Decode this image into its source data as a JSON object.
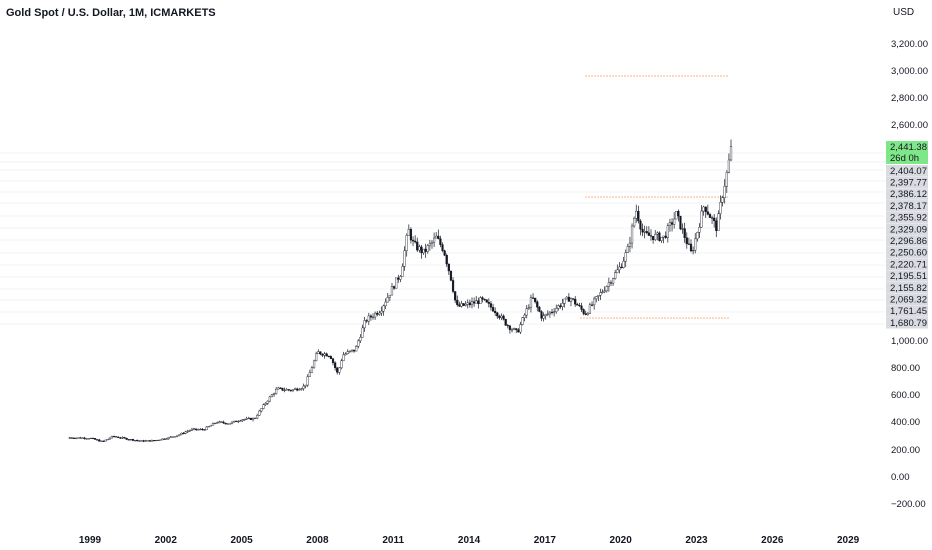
{
  "header": {
    "title": "Gold Spot / U.S. Dollar, 1M, ICMARKETS",
    "currency": "USD"
  },
  "chart_data": {
    "type": "candlestick",
    "interval": "1M",
    "y_axis_ticks": [
      "3,200.00",
      "3,000.00",
      "2,800.00",
      "2,600.00",
      "1,000.00",
      "800.00",
      "600.00",
      "400.00",
      "200.00",
      "0.00",
      "−200.00"
    ],
    "y_tick_values": [
      3200,
      3000,
      2800,
      2600,
      1000,
      800,
      600,
      400,
      200,
      0,
      -200
    ],
    "x_axis_labels": [
      "1999",
      "2002",
      "2005",
      "2008",
      "2011",
      "2014",
      "2017",
      "2020",
      "2023",
      "2026",
      "2029"
    ],
    "x_tick_years": [
      1999,
      2002,
      2005,
      2008,
      2011,
      2014,
      2017,
      2020,
      2023,
      2026,
      2029
    ],
    "current_price": {
      "label": "2,441.38",
      "countdown": "26d 0h",
      "color": "#7ee787"
    },
    "price_labels": [
      "2,404.07",
      "2,397.77",
      "2,386.12",
      "2,378.17",
      "2,355.92",
      "2,329.09",
      "2,296.86",
      "2,250.60",
      "2,220.71",
      "2,195.51",
      "2,155.82",
      "2,069.32",
      "1,761.45",
      "1,680.79"
    ],
    "horizontal_levels": [
      {
        "price": 2960,
        "from_year": 2018.6,
        "to_year": 2024.3,
        "color": "#f57c2c",
        "style": "dotted"
      },
      {
        "price": 2075,
        "from_year": 2018.6,
        "to_year": 2024.3,
        "color": "#f57c2c",
        "style": "dotted"
      },
      {
        "price": 1170,
        "from_year": 2018.4,
        "to_year": 2024.3,
        "color": "#f57c2c",
        "style": "dotted"
      }
    ],
    "price_path": [
      [
        1998.2,
        290
      ],
      [
        1999.0,
        287
      ],
      [
        1999.5,
        260
      ],
      [
        1999.9,
        300
      ],
      [
        2000.5,
        280
      ],
      [
        2001.0,
        265
      ],
      [
        2001.5,
        268
      ],
      [
        2002.0,
        285
      ],
      [
        2002.5,
        310
      ],
      [
        2003.0,
        350
      ],
      [
        2003.5,
        350
      ],
      [
        2004.0,
        405
      ],
      [
        2004.5,
        395
      ],
      [
        2005.0,
        425
      ],
      [
        2005.5,
        430
      ],
      [
        2006.0,
        560
      ],
      [
        2006.4,
        650
      ],
      [
        2007.0,
        640
      ],
      [
        2007.5,
        670
      ],
      [
        2008.0,
        920
      ],
      [
        2008.5,
        900
      ],
      [
        2008.8,
        760
      ],
      [
        2009.0,
        900
      ],
      [
        2009.5,
        940
      ],
      [
        2009.9,
        1150
      ],
      [
        2010.5,
        1230
      ],
      [
        2011.0,
        1400
      ],
      [
        2011.3,
        1500
      ],
      [
        2011.6,
        1820
      ],
      [
        2011.8,
        1710
      ],
      [
        2012.2,
        1650
      ],
      [
        2012.7,
        1760
      ],
      [
        2013.0,
        1670
      ],
      [
        2013.3,
        1450
      ],
      [
        2013.5,
        1250
      ],
      [
        2014.0,
        1270
      ],
      [
        2014.5,
        1300
      ],
      [
        2015.0,
        1230
      ],
      [
        2015.5,
        1120
      ],
      [
        2015.9,
        1060
      ],
      [
        2016.5,
        1320
      ],
      [
        2016.9,
        1170
      ],
      [
        2017.5,
        1250
      ],
      [
        2018.0,
        1320
      ],
      [
        2018.6,
        1200
      ],
      [
        2019.0,
        1300
      ],
      [
        2019.5,
        1420
      ],
      [
        2020.0,
        1550
      ],
      [
        2020.3,
        1680
      ],
      [
        2020.6,
        1970
      ],
      [
        2020.9,
        1780
      ],
      [
        2021.3,
        1770
      ],
      [
        2021.7,
        1760
      ],
      [
        2022.2,
        1930
      ],
      [
        2022.8,
        1640
      ],
      [
        2023.3,
        2000
      ],
      [
        2023.8,
        1830
      ],
      [
        2024.0,
        2050
      ],
      [
        2024.2,
        2230
      ],
      [
        2024.4,
        2441
      ]
    ]
  }
}
